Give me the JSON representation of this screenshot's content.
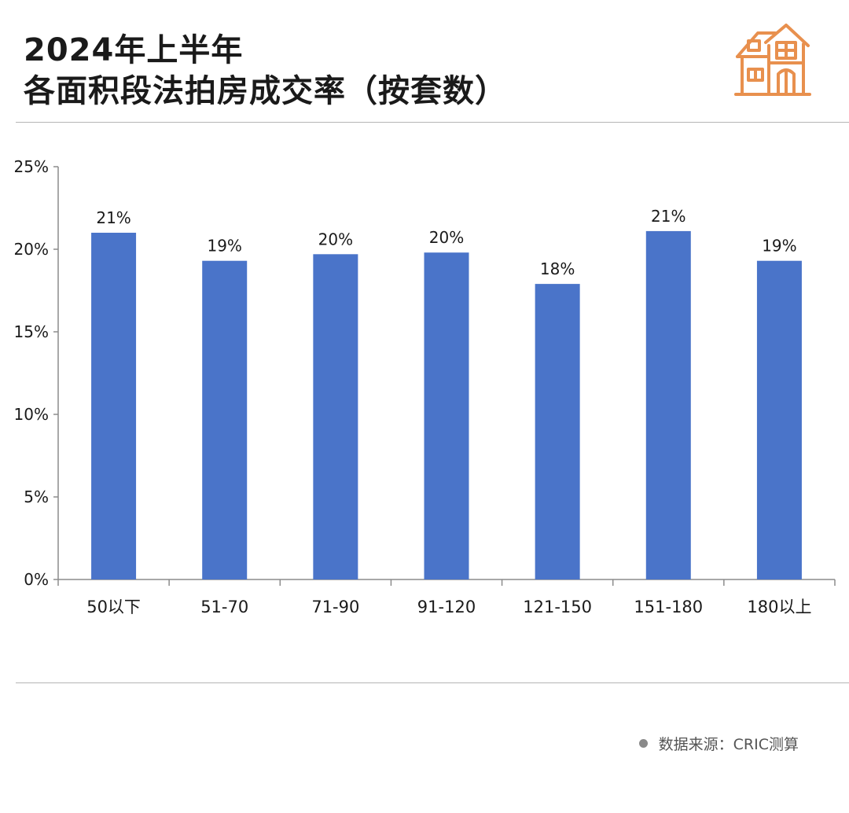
{
  "header": {
    "title_line1": "2024年上半年",
    "title_line2": "各面积段法拍房成交率（按套数）",
    "icon": "house-icon",
    "icon_color": "#E8904E"
  },
  "footer": {
    "source": "数据来源：CRIC测算",
    "bullet_icon": "bullet-dot-icon"
  },
  "chart_data": {
    "type": "bar",
    "categories": [
      "50以下",
      "51-70",
      "71-90",
      "91-120",
      "121-150",
      "151-180",
      "180以上"
    ],
    "values": [
      21.0,
      19.3,
      19.7,
      19.8,
      17.9,
      21.1,
      19.3
    ],
    "data_labels": [
      "21%",
      "19%",
      "20%",
      "20%",
      "18%",
      "21%",
      "19%"
    ],
    "y_ticks": [
      "0%",
      "5%",
      "10%",
      "15%",
      "20%",
      "25%"
    ],
    "ylim": [
      0,
      25
    ],
    "unit": "%",
    "grid": false,
    "legend": "none",
    "bar_color": "#4A74C9"
  }
}
